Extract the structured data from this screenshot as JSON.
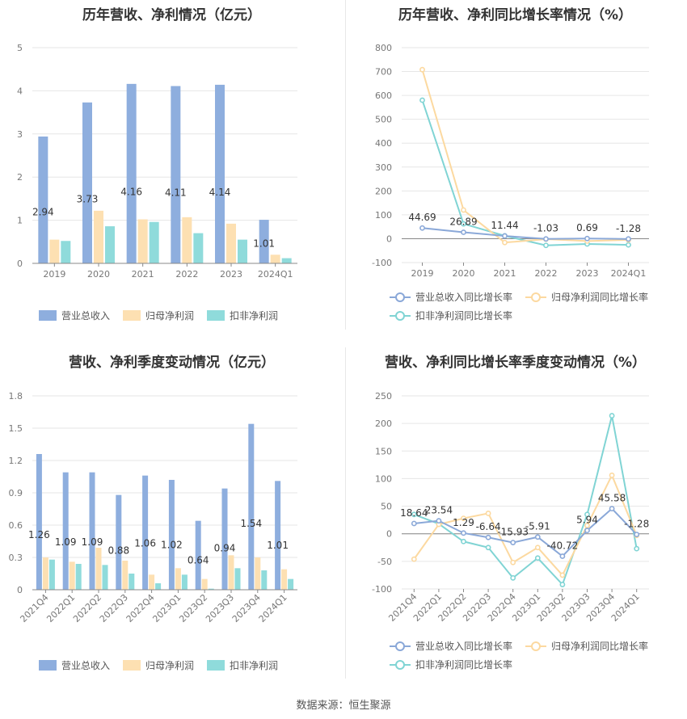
{
  "source_label": "数据来源：恒生聚源",
  "chart_data": [
    {
      "type": "bar",
      "title": "历年营收、净利情况（亿元）",
      "categories": [
        "2019",
        "2020",
        "2021",
        "2022",
        "2023",
        "2024Q1"
      ],
      "ylim": [
        0,
        5
      ],
      "yticks": [
        0,
        1,
        2,
        3,
        4,
        5
      ],
      "series": [
        {
          "name": "营业总收入",
          "color": "#8eaede",
          "values": [
            2.94,
            3.73,
            4.16,
            4.11,
            4.14,
            1.01
          ],
          "labels": [
            "2.94",
            "3.73",
            "4.16",
            "4.11",
            "4.14",
            "1.01"
          ]
        },
        {
          "name": "归母净利润",
          "color": "#fde0b2",
          "values": [
            0.55,
            1.22,
            1.02,
            1.07,
            0.92,
            0.2
          ]
        },
        {
          "name": "扣非净利润",
          "color": "#8fdbdb",
          "values": [
            0.52,
            0.86,
            0.96,
            0.7,
            0.55,
            0.12
          ]
        }
      ],
      "legend": "bottom",
      "grid": true
    },
    {
      "type": "line",
      "title": "历年营收、净利同比增长率情况（%）",
      "categories": [
        "2019",
        "2020",
        "2021",
        "2022",
        "2023",
        "2024Q1"
      ],
      "ylim": [
        -100,
        800
      ],
      "yticks": [
        -100,
        0,
        100,
        200,
        300,
        400,
        500,
        600,
        700,
        800
      ],
      "series": [
        {
          "name": "营业总收入同比增长率",
          "color": "#8aa8d8",
          "values": [
            44.69,
            26.89,
            11.44,
            -1.03,
            0.69,
            -1.28
          ],
          "labels": [
            "44.69",
            "26.89",
            "11.44",
            "-1.03",
            "0.69",
            "-1.28"
          ]
        },
        {
          "name": "归母净利润同比增长率",
          "color": "#fcd9a0",
          "values": [
            708,
            120,
            -16,
            -2,
            -10,
            -5
          ]
        },
        {
          "name": "扣非净利润同比增长率",
          "color": "#80d4d4",
          "values": [
            580,
            62,
            12,
            -28,
            -22,
            -26
          ]
        }
      ],
      "legend": "bottom",
      "grid": true
    },
    {
      "type": "bar",
      "title": "营收、净利季度变动情况（亿元）",
      "categories": [
        "2021Q4",
        "2022Q1",
        "2022Q2",
        "2022Q3",
        "2022Q4",
        "2023Q1",
        "2023Q2",
        "2023Q3",
        "2023Q4",
        "2024Q1"
      ],
      "ylim": [
        0,
        1.8
      ],
      "yticks": [
        0,
        0.3,
        0.6,
        0.9,
        1.2,
        1.5,
        1.8
      ],
      "series": [
        {
          "name": "营业总收入",
          "color": "#8eaede",
          "values": [
            1.26,
            1.09,
            1.09,
            0.88,
            1.06,
            1.02,
            0.64,
            0.94,
            1.54,
            1.01
          ],
          "labels": [
            "1.26",
            "1.09",
            "1.09",
            "0.88",
            "1.06",
            "1.02",
            "0.64",
            "0.94",
            "1.54",
            "1.01"
          ]
        },
        {
          "name": "归母净利润",
          "color": "#fde0b2",
          "values": [
            0.3,
            0.26,
            0.39,
            0.27,
            0.14,
            0.2,
            0.1,
            0.32,
            0.3,
            0.19
          ]
        },
        {
          "name": "扣非净利润",
          "color": "#8fdbdb",
          "values": [
            0.28,
            0.24,
            0.23,
            0.15,
            0.06,
            0.14,
            0.01,
            0.2,
            0.18,
            0.1
          ]
        }
      ],
      "legend": "bottom",
      "grid": true
    },
    {
      "type": "line",
      "title": "营收、净利同比增长率季度变动情况（%）",
      "categories": [
        "2021Q4",
        "2022Q1",
        "2022Q2",
        "2022Q3",
        "2022Q4",
        "2023Q1",
        "2023Q2",
        "2023Q3",
        "2023Q4",
        "2024Q1"
      ],
      "ylim": [
        -100,
        250
      ],
      "yticks": [
        -100,
        -50,
        0,
        50,
        100,
        150,
        200,
        250
      ],
      "series": [
        {
          "name": "营业总收入同比增长率",
          "color": "#8aa8d8",
          "values": [
            18.64,
            23.54,
            1.29,
            -6.64,
            -15.93,
            -5.91,
            -40.72,
            5.94,
            45.58,
            -1.28
          ],
          "labels": [
            "18.64",
            "23.54",
            "1.29",
            "-6.64",
            "-15.93",
            "-5.91",
            "-40.72",
            "5.94",
            "45.58",
            "-1.28"
          ]
        },
        {
          "name": "归母净利润同比增长率",
          "color": "#fcd9a0",
          "values": [
            -46,
            17,
            28,
            37,
            -52,
            -25,
            -75,
            15,
            106,
            -3
          ]
        },
        {
          "name": "扣非净利润同比增长率",
          "color": "#80d4d4",
          "values": [
            35,
            18,
            -14,
            -25,
            -80,
            -44,
            -92,
            35,
            214,
            -27
          ]
        }
      ],
      "legend": "bottom",
      "grid": true
    }
  ]
}
